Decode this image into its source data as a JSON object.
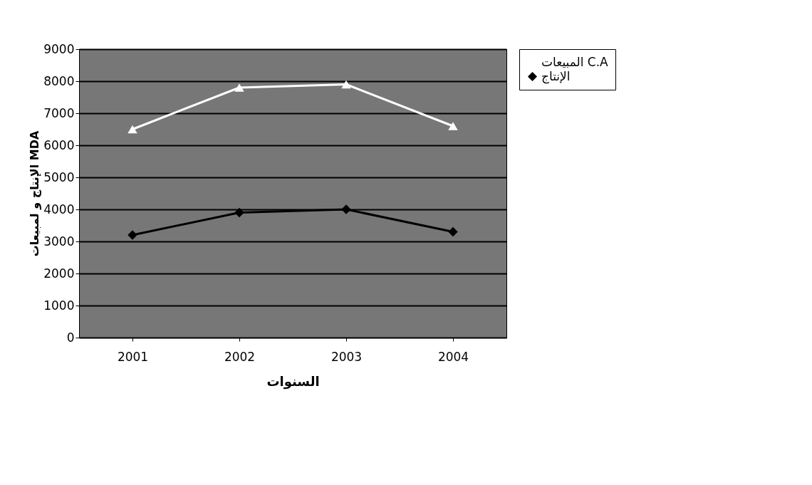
{
  "chart_data": {
    "type": "line",
    "xlabel": "السنوات",
    "ylabel": "الإنتاج و لمبيعات MDA",
    "categories": [
      "2001",
      "2002",
      "2003",
      "2004"
    ],
    "series": [
      {
        "name": "المبيعات C.A",
        "color": "#ffffff",
        "marker": "triangle",
        "values": [
          6500,
          7800,
          7900,
          6600
        ]
      },
      {
        "name": "الإنتاج",
        "color": "#000000",
        "marker": "diamond",
        "values": [
          3200,
          3900,
          4000,
          3300
        ]
      }
    ],
    "ylim": [
      0,
      9000
    ],
    "yticks": [
      0,
      1000,
      2000,
      3000,
      4000,
      5000,
      6000,
      7000,
      8000,
      9000
    ],
    "grid": "y",
    "legend": "right"
  }
}
